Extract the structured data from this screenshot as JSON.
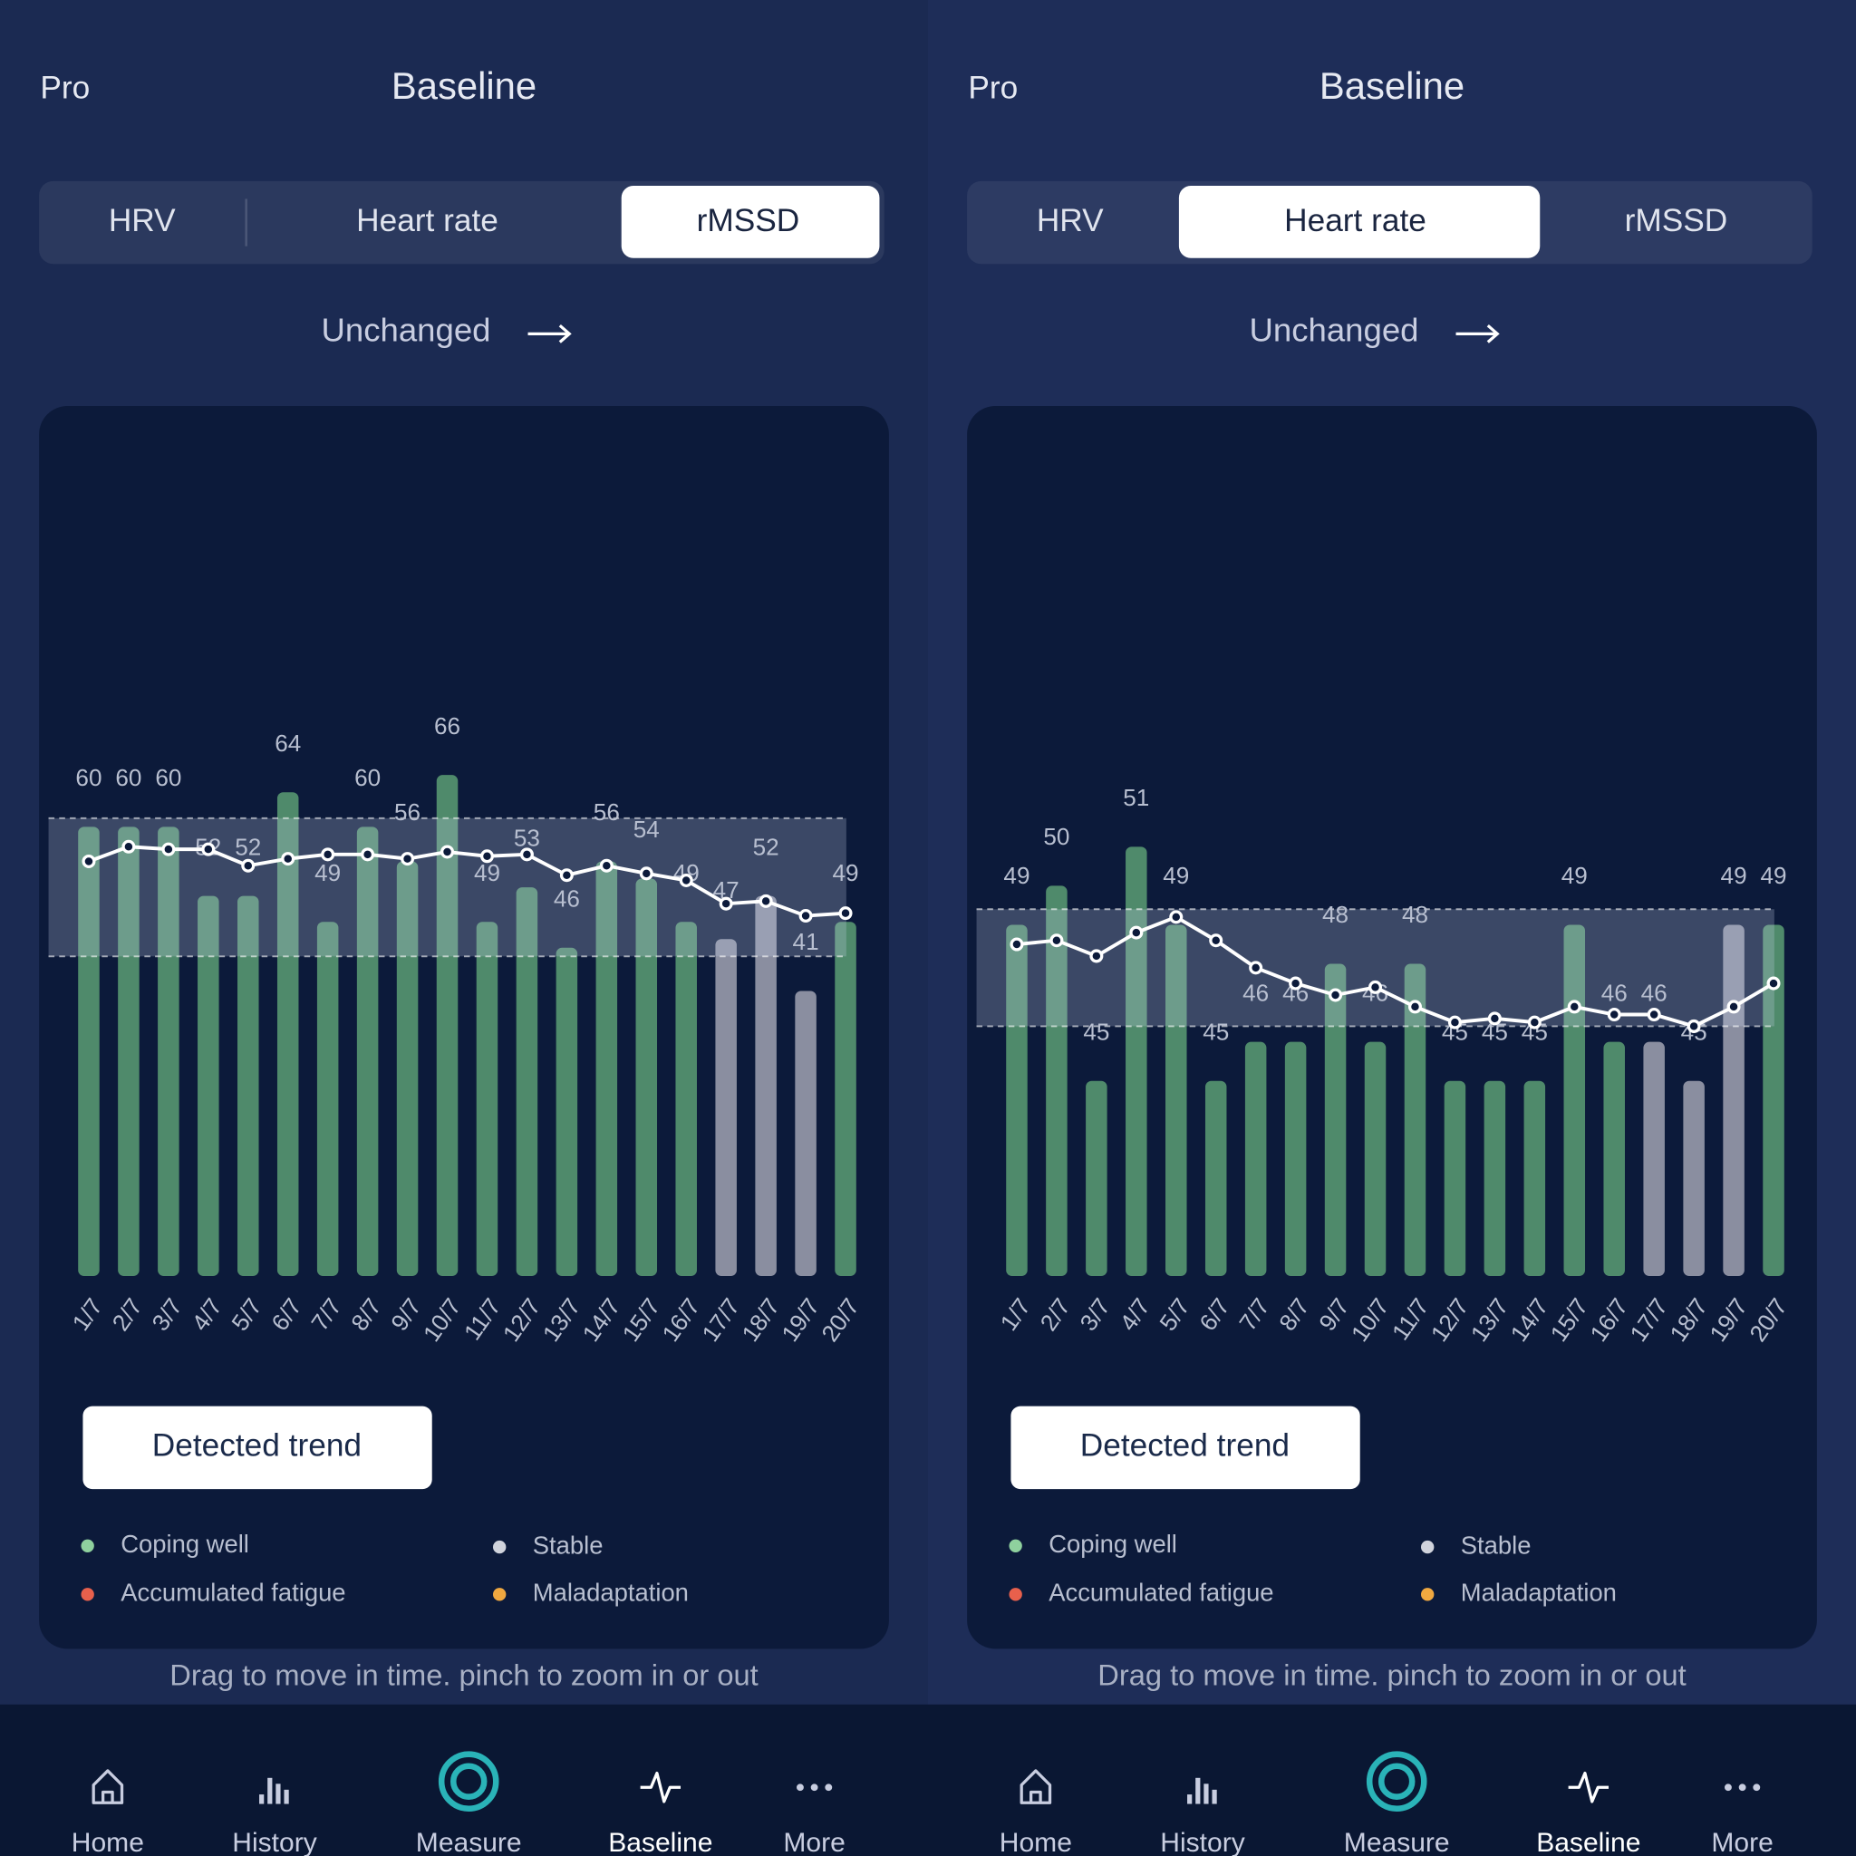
{
  "screens": [
    {
      "header": {
        "left": "Pro",
        "title": "Baseline"
      },
      "tabs": [
        "HRV",
        "Heart rate",
        "rMSSD"
      ],
      "active_tab": 2,
      "trend": "Unchanged",
      "chart_data": {
        "type": "bar",
        "categories": [
          "1/7",
          "2/7",
          "3/7",
          "4/7",
          "5/7",
          "6/7",
          "7/7",
          "8/7",
          "9/7",
          "10/7",
          "11/7",
          "12/7",
          "13/7",
          "14/7",
          "15/7",
          "16/7",
          "17/7",
          "18/7",
          "19/7",
          "20/7"
        ],
        "values": [
          60,
          60,
          60,
          52,
          52,
          64,
          49,
          60,
          56,
          66,
          49,
          53,
          46,
          56,
          54,
          49,
          47,
          52,
          41,
          49
        ],
        "bar_colors": [
          "#4f8a6b",
          "#4f8a6b",
          "#4f8a6b",
          "#4f8a6b",
          "#4f8a6b",
          "#4f8a6b",
          "#4f8a6b",
          "#4f8a6b",
          "#4f8a6b",
          "#4f8a6b",
          "#4f8a6b",
          "#4f8a6b",
          "#4f8a6b",
          "#4f8a6b",
          "#4f8a6b",
          "#4f8a6b",
          "#8a8ea0",
          "#8a8ea0",
          "#8a8ea0",
          "#4f8a6b"
        ],
        "line": {
          "color": "#ffffff",
          "values": [
            56.0,
            57.7,
            57.4,
            57.4,
            55.5,
            56.3,
            56.8,
            56.8,
            56.3,
            57.1,
            56.6,
            56.8,
            54.4,
            55.5,
            54.6,
            53.8,
            51.1,
            51.4,
            49.7,
            50.0
          ]
        },
        "band": {
          "upper": 61,
          "lower": 45
        },
        "ylim": [
          8,
          73.5
        ]
      },
      "button": "Detected trend",
      "legend": [
        {
          "label": "Coping well",
          "color": "#8fd19e"
        },
        {
          "label": "Stable",
          "color": "#d0d3dc"
        },
        {
          "label": "Accumulated fatigue",
          "color": "#e8604c"
        },
        {
          "label": "Maladaptation",
          "color": "#f0a840"
        }
      ],
      "hint": "Drag to move in time. pinch to zoom in or out",
      "nav": [
        "Home",
        "History",
        "Measure",
        "Baseline",
        "More"
      ],
      "active_nav": 3
    },
    {
      "header": {
        "left": "Pro",
        "title": "Baseline"
      },
      "tabs": [
        "HRV",
        "Heart rate",
        "rMSSD"
      ],
      "active_tab": 1,
      "trend": "Unchanged",
      "chart_data": {
        "type": "bar",
        "categories": [
          "1/7",
          "2/7",
          "3/7",
          "4/7",
          "5/7",
          "6/7",
          "7/7",
          "8/7",
          "9/7",
          "10/7",
          "11/7",
          "12/7",
          "13/7",
          "14/7",
          "15/7",
          "16/7",
          "17/7",
          "18/7",
          "19/7",
          "20/7"
        ],
        "values": [
          49,
          50,
          45,
          51,
          49,
          45,
          46,
          46,
          48,
          46,
          48,
          45,
          45,
          45,
          49,
          46,
          46,
          45,
          49,
          49
        ],
        "bar_colors": [
          "#4f8a6b",
          "#4f8a6b",
          "#4f8a6b",
          "#4f8a6b",
          "#4f8a6b",
          "#4f8a6b",
          "#4f8a6b",
          "#4f8a6b",
          "#4f8a6b",
          "#4f8a6b",
          "#4f8a6b",
          "#4f8a6b",
          "#4f8a6b",
          "#4f8a6b",
          "#4f8a6b",
          "#4f8a6b",
          "#8a8ea0",
          "#8a8ea0",
          "#8a8ea0",
          "#4f8a6b"
        ],
        "line": {
          "color": "#ffffff",
          "values": [
            48.5,
            48.6,
            48.2,
            48.8,
            49.2,
            48.6,
            47.9,
            47.5,
            47.2,
            47.4,
            46.9,
            46.5,
            46.6,
            46.5,
            46.9,
            46.7,
            46.7,
            46.4,
            46.9,
            47.5
          ]
        },
        "band": {
          "upper": 49.4,
          "lower": 46.4
        },
        "ylim": [
          40,
          54.5
        ]
      },
      "button": "Detected trend",
      "legend": [
        {
          "label": "Coping well",
          "color": "#8fd19e"
        },
        {
          "label": "Stable",
          "color": "#d0d3dc"
        },
        {
          "label": "Accumulated fatigue",
          "color": "#e8604c"
        },
        {
          "label": "Maladaptation",
          "color": "#f0a840"
        }
      ],
      "hint": "Drag to move in time. pinch to zoom in or out",
      "nav": [
        "Home",
        "History",
        "Measure",
        "Baseline",
        "More"
      ],
      "active_nav": 3
    }
  ]
}
